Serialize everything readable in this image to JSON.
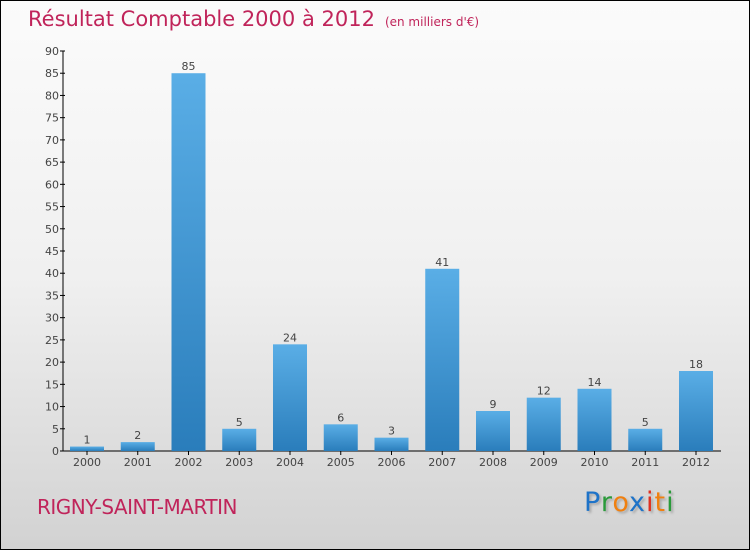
{
  "chart_data": {
    "type": "bar",
    "title": "Résultat Comptable 2000 à 2012",
    "subtitle": "(en milliers d'€)",
    "categories": [
      "2000",
      "2001",
      "2002",
      "2003",
      "2004",
      "2005",
      "2006",
      "2007",
      "2008",
      "2009",
      "2010",
      "2011",
      "2012"
    ],
    "values": [
      1,
      2,
      85,
      5,
      24,
      6,
      3,
      41,
      9,
      12,
      14,
      5,
      18
    ],
    "ylim": [
      0,
      90
    ],
    "yticks": [
      0,
      5,
      10,
      15,
      20,
      25,
      30,
      35,
      40,
      45,
      50,
      55,
      60,
      65,
      70,
      75,
      80,
      85,
      90
    ],
    "xlabel": "",
    "ylabel": "",
    "grid": false,
    "colors": {
      "bar_top": "#5aaee6",
      "bar_bottom": "#2a7dbb",
      "title": "#c0245a"
    }
  },
  "footer": {
    "city": "RIGNY-SAINT-MARTIN"
  },
  "logo": {
    "text": "Proxiti",
    "letters": [
      "P",
      "r",
      "o",
      "x",
      "i",
      "t",
      "i"
    ],
    "colors": [
      "#1e73c8",
      "#2a9a3a",
      "#f08010",
      "#1e73c8",
      "#e03020",
      "#f08010",
      "#2a9a3a"
    ]
  }
}
